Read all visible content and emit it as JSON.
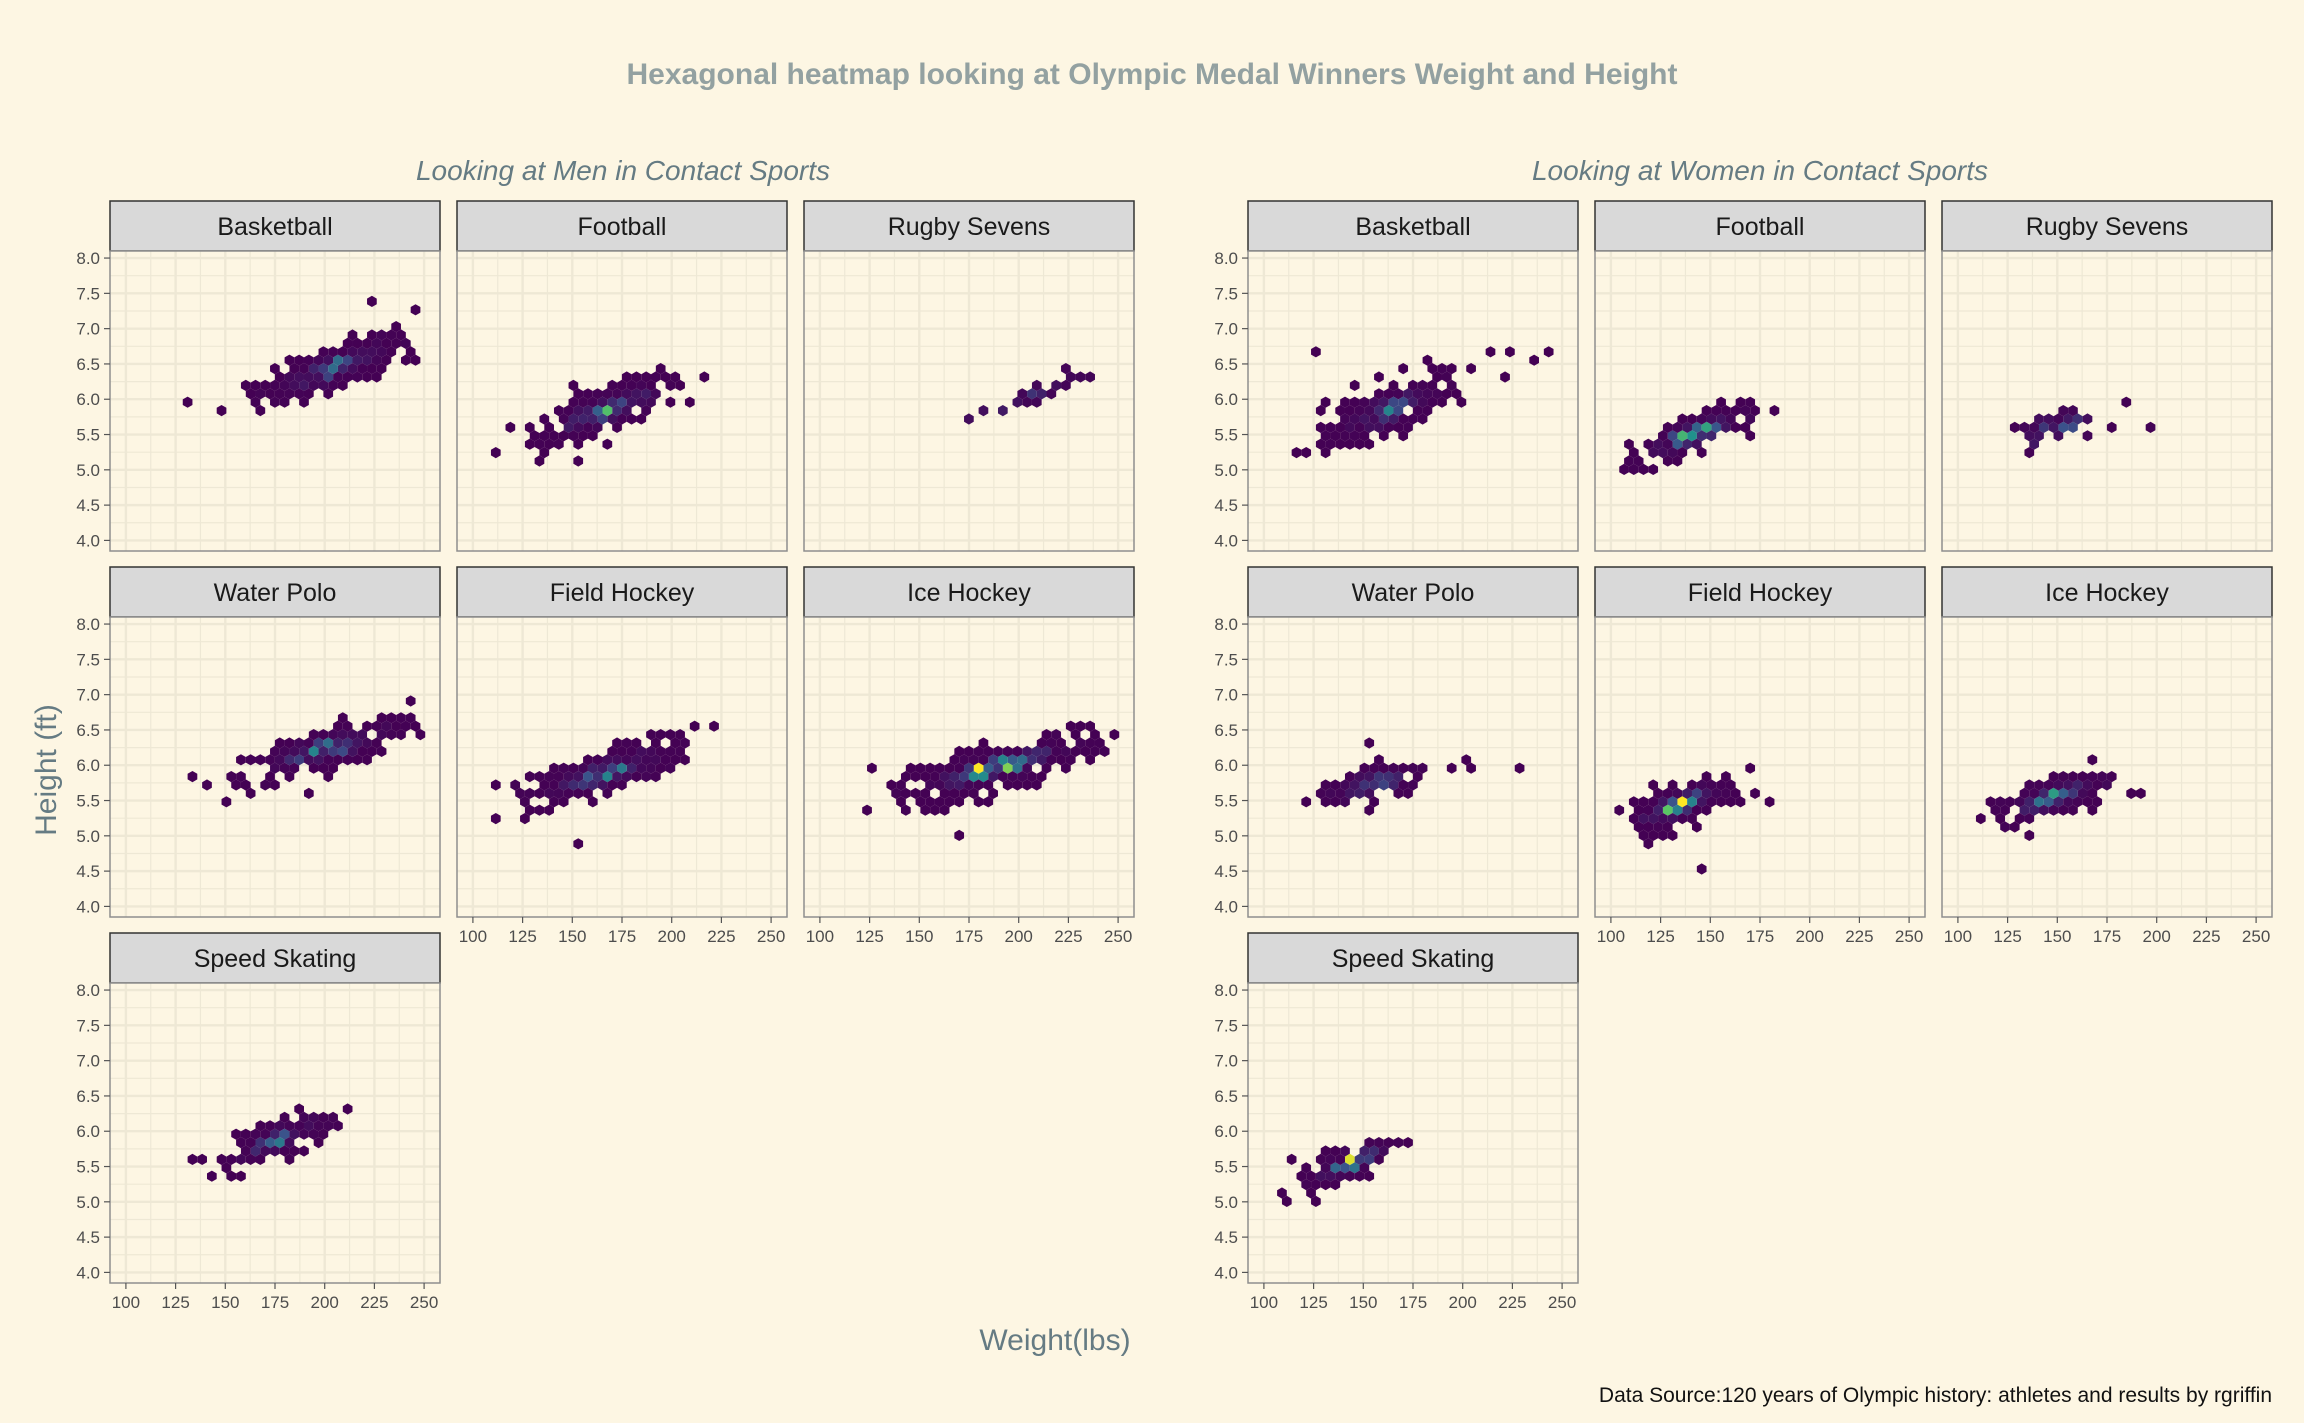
{
  "title": "Hexagonal heatmap looking at Olympic Medal Winners Weight and Height",
  "ylabel": "Height (ft)",
  "xlabel": "Weight(lbs)",
  "caption": "Data Source:120 years of Olympic history: athletes and results by rgriffin",
  "chart_data": {
    "type": "heatmap",
    "subtype": "hexbin",
    "xlim": [
      92,
      258
    ],
    "ylim": [
      3.85,
      8.1
    ],
    "x_ticks": [
      100,
      125,
      150,
      175,
      200,
      225,
      250
    ],
    "x_tick_labels": [
      "100",
      "125",
      "150",
      "175",
      "200",
      "225",
      "250"
    ],
    "y_ticks": [
      4.0,
      4.5,
      5.0,
      5.5,
      6.0,
      6.5,
      7.0,
      7.5,
      8.0
    ],
    "y_tick_labels": [
      "4.0",
      "4.5",
      "5.0",
      "5.5",
      "6.0",
      "6.5",
      "7.0",
      "7.5",
      "8.0"
    ],
    "grid": true,
    "color_scale": [
      "#440154",
      "#3b528b",
      "#21918c",
      "#5ec962",
      "#fde725"
    ],
    "groups": [
      {
        "subtitle": "Looking at Men in Contact Sports",
        "panels": [
          {
            "sport": "Basketball",
            "clusters": [
              {
                "from": [
                  165,
                  6.0
                ],
                "to": [
                  242,
                  6.85
                ],
                "spread": 0.13,
                "peak": 0.35,
                "n": 240
              },
              {
                "points": [
                  [
                    130,
                    5.97
                  ],
                  [
                    148,
                    5.85
                  ],
                  [
                    225,
                    7.35
                  ],
                  [
                    245,
                    7.25
                  ]
                ]
              }
            ]
          },
          {
            "sport": "Football",
            "clusters": [
              {
                "from": [
                  130,
                  5.45
                ],
                "to": [
                  205,
                  6.25
                ],
                "spread": 0.14,
                "peak": 0.7,
                "n": 220
              },
              {
                "points": [
                  [
                    113,
                    5.3
                  ],
                  [
                    118,
                    5.55
                  ],
                  [
                    218,
                    6.35
                  ]
                ]
              }
            ]
          },
          {
            "sport": "Rugby Sevens",
            "clusters": [
              {
                "from": [
                  175,
                  5.72
                ],
                "to": [
                  240,
                  6.45
                ],
                "spread": 0.05,
                "peak": 0.15,
                "n": 24
              }
            ]
          },
          {
            "sport": "Water Polo",
            "clusters": [
              {
                "from": [
                  155,
                  5.85
                ],
                "to": [
                  245,
                  6.6
                ],
                "spread": 0.13,
                "peak": 0.45,
                "n": 220
              },
              {
                "points": [
                  [
                    135,
                    5.8
                  ],
                  [
                    143,
                    5.7
                  ],
                  [
                    152,
                    5.48
                  ]
                ]
              }
            ]
          },
          {
            "sport": "Field Hockey",
            "clusters": [
              {
                "from": [
                  125,
                  5.5
                ],
                "to": [
                  205,
                  6.25
                ],
                "spread": 0.14,
                "peak": 0.45,
                "n": 200
              },
              {
                "points": [
                  [
                    113,
                    5.75
                  ],
                  [
                    112,
                    5.25
                  ],
                  [
                    152,
                    4.9
                  ],
                  [
                    220,
                    6.5
                  ],
                  [
                    210,
                    6.55
                  ]
                ]
              }
            ]
          },
          {
            "sport": "Ice Hockey",
            "clusters": [
              {
                "from": [
                  140,
                  5.6
                ],
                "to": [
                  240,
                  6.35
                ],
                "spread": 0.14,
                "peak": 1.0,
                "n": 260
              },
              {
                "points": [
                  [
                    126,
                    5.4
                  ],
                  [
                    128,
                    5.9
                  ],
                  [
                    250,
                    6.45
                  ],
                  [
                    170,
                    5.05
                  ]
                ]
              }
            ]
          },
          {
            "sport": "Speed Skating",
            "clusters": [
              {
                "from": [
                  150,
                  5.6
                ],
                "to": [
                  205,
                  6.2
                ],
                "spread": 0.11,
                "peak": 0.4,
                "n": 110
              },
              {
                "points": [
                  [
                    132,
                    5.55
                  ],
                  [
                    136,
                    5.65
                  ],
                  [
                    142,
                    5.35
                  ],
                  [
                    152,
                    5.32
                  ],
                  [
                    160,
                    5.4
                  ],
                  [
                    213,
                    6.3
                  ]
                ]
              }
            ]
          }
        ]
      },
      {
        "subtitle": "Looking at Women in Contact Sports",
        "panels": [
          {
            "sport": "Basketball",
            "clusters": [
              {
                "from": [
                  130,
                  5.45
                ],
                "to": [
                  195,
                  6.25
                ],
                "spread": 0.16,
                "peak": 0.45,
                "n": 200
              },
              {
                "points": [
                  [
                    115,
                    5.3
                  ],
                  [
                    120,
                    5.3
                  ],
                  [
                    127,
                    6.7
                  ],
                  [
                    225,
                    6.7
                  ],
                  [
                    235,
                    6.6
                  ],
                  [
                    245,
                    6.7
                  ],
                  [
                    222,
                    6.3
                  ],
                  [
                    213,
                    6.7
                  ],
                  [
                    205,
                    6.45
                  ]
                ]
              }
            ]
          },
          {
            "sport": "Football",
            "clusters": [
              {
                "from": [
                  110,
                  5.15
                ],
                "to": [
                  170,
                  5.8
                ],
                "spread": 0.11,
                "peak": 0.65,
                "n": 140
              },
              {
                "points": [
                  [
                    180,
                    5.85
                  ],
                  [
                    106,
                    5.05
                  ]
                ]
              }
            ]
          },
          {
            "sport": "Rugby Sevens",
            "clusters": [
              {
                "from": [
                  135,
                  5.45
                ],
                "to": [
                  165,
                  5.75
                ],
                "spread": 0.09,
                "peak": 0.25,
                "n": 36
              },
              {
                "points": [
                  [
                    130,
                    5.65
                  ],
                  [
                    185,
                    5.9
                  ],
                  [
                    197,
                    5.65
                  ],
                  [
                    175,
                    5.55
                  ],
                  [
                    138,
                    5.2
                  ]
                ]
              }
            ]
          },
          {
            "sport": "Water Polo",
            "clusters": [
              {
                "from": [
                  130,
                  5.55
                ],
                "to": [
                  180,
                  5.95
                ],
                "spread": 0.12,
                "peak": 0.2,
                "n": 100
              },
              {
                "points": [
                  [
                    120,
                    5.45
                  ],
                  [
                    230,
                    6.0
                  ],
                  [
                    200,
                    6.1
                  ],
                  [
                    205,
                    5.95
                  ],
                  [
                    195,
                    5.95
                  ],
                  [
                    155,
                    6.35
                  ]
                ]
              }
            ]
          },
          {
            "sport": "Field Hockey",
            "clusters": [
              {
                "from": [
                  110,
                  5.15
                ],
                "to": [
                  160,
                  5.75
                ],
                "spread": 0.13,
                "peak": 1.0,
                "n": 180
              },
              {
                "points": [
                  [
                    145,
                    4.5
                  ],
                  [
                    170,
                    6.0
                  ],
                  [
                    178,
                    5.45
                  ],
                  [
                    173,
                    5.55
                  ]
                ]
              }
            ]
          },
          {
            "sport": "Ice Hockey",
            "clusters": [
              {
                "from": [
                  120,
                  5.3
                ],
                "to": [
                  175,
                  5.8
                ],
                "spread": 0.12,
                "peak": 0.55,
                "n": 160
              },
              {
                "points": [
                  [
                    113,
                    5.3
                  ],
                  [
                    188,
                    5.65
                  ],
                  [
                    190,
                    5.55
                  ]
                ]
              }
            ]
          },
          {
            "sport": "Speed Skating",
            "clusters": [
              {
                "from": [
                  120,
                  5.25
                ],
                "to": [
                  165,
                  5.85
                ],
                "spread": 0.11,
                "peak": 0.95,
                "n": 90
              },
              {
                "points": [
                  [
                    108,
                    5.15
                  ],
                  [
                    113,
                    5.05
                  ],
                  [
                    126,
                    5.05
                  ],
                  [
                    172,
                    5.85
                  ]
                ]
              }
            ]
          }
        ]
      }
    ]
  }
}
